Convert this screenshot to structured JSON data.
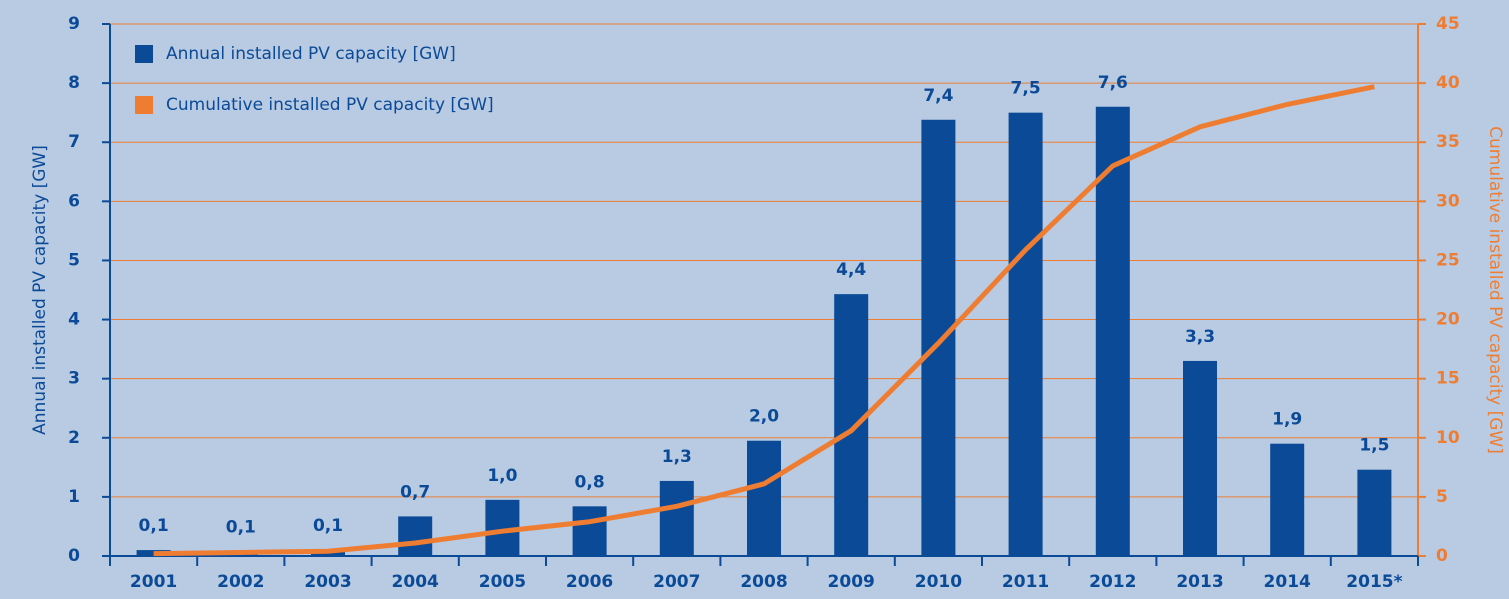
{
  "chart_data": {
    "type": "bar",
    "categories": [
      "2001",
      "2002",
      "2003",
      "2004",
      "2005",
      "2006",
      "2007",
      "2008",
      "2009",
      "2010",
      "2011",
      "2012",
      "2013",
      "2014",
      "2015*"
    ],
    "series": [
      {
        "name": "Annual installed PV capacity [GW]",
        "color": "#0b4a96",
        "type": "bar",
        "values": [
          0.1,
          0.08,
          0.1,
          0.67,
          0.95,
          0.84,
          1.27,
          1.95,
          4.43,
          7.38,
          7.5,
          7.6,
          3.3,
          1.9,
          1.46
        ],
        "value_labels": [
          "0,1",
          "0,1",
          "0,1",
          "0,7",
          "1,0",
          "0,8",
          "1,3",
          "2,0",
          "4,4",
          "7,4",
          "7,5",
          "7,6",
          "3,3",
          "1,9",
          "1,5"
        ]
      },
      {
        "name": "Cumulative installed PV capacity [GW]",
        "color": "#ef7d31",
        "type": "line",
        "axis": "y2",
        "values": [
          0.2,
          0.3,
          0.4,
          1.1,
          2.1,
          2.9,
          4.2,
          6.1,
          10.6,
          18.0,
          25.9,
          33.0,
          36.3,
          38.2,
          39.7
        ]
      }
    ],
    "ylabel": "Annual installed PV capacity [GW]",
    "y2label": "Cumulative installed PV capacity [GW]",
    "ylim": [
      0,
      9
    ],
    "yticks": [
      0,
      1,
      2,
      3,
      4,
      5,
      6,
      7,
      8,
      9
    ],
    "y2lim": [
      0,
      45
    ],
    "y2ticks": [
      0,
      5,
      10,
      15,
      20,
      25,
      30,
      35,
      40,
      45
    ],
    "grid": true,
    "legend": "upper left"
  }
}
